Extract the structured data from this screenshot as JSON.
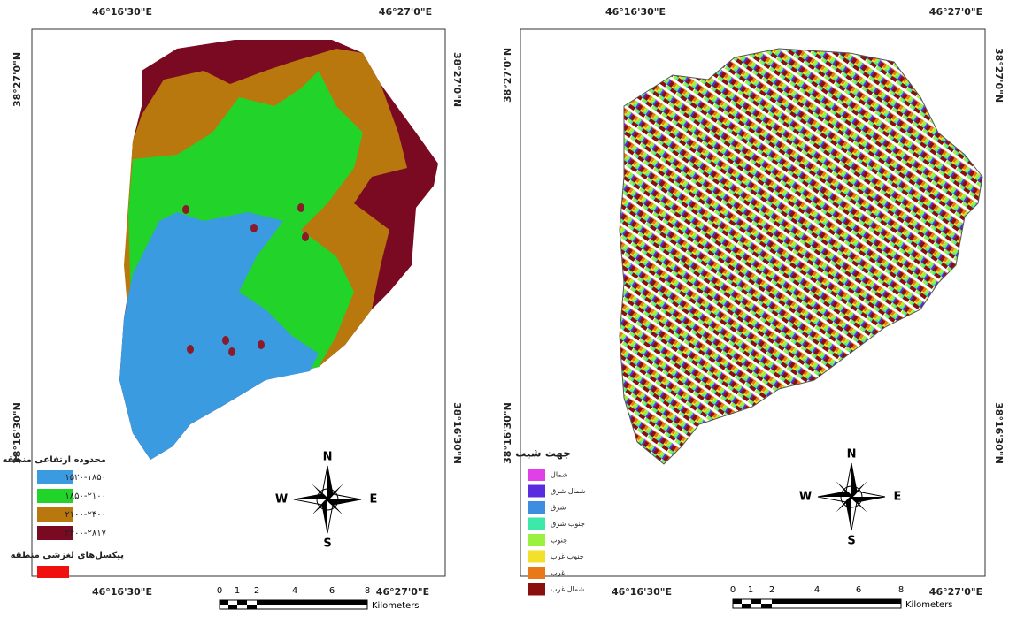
{
  "maps": [
    {
      "top_labels": [
        "46°16'30\"E",
        "46°27'0\"E"
      ],
      "left_labels": [
        "38°27'0\"N",
        "38°16'30\"N"
      ],
      "right_labels": [
        "38°27'0\"N",
        "38°16'30\"N"
      ],
      "bottom_labels": [
        "46°16'30\"E",
        "46°27'0\"E"
      ],
      "legend": {
        "title": "محدوده ارتفاعی منطقه",
        "items": [
          {
            "label": "۱۵۲۰-۱۸۵۰",
            "color": "#3a9be0"
          },
          {
            "label": "۱۸۵۰-۲۱۰۰",
            "color": "#22d42a"
          },
          {
            "label": "۲۱۰۰-۲۴۰۰",
            "color": "#b8780e"
          },
          {
            "label": "۲۴۰۰-۲۸۱۷",
            "color": "#7a0a22"
          }
        ],
        "extra_title": "پیکسل‌های لغزشی منطقه",
        "extra_color": "#f01010"
      },
      "compass": {
        "n": "N",
        "e": "E",
        "s": "S",
        "w": "W"
      },
      "scale": {
        "ticks": [
          "0",
          "1",
          "2",
          "4",
          "6",
          "8"
        ],
        "unit": "Kilometers"
      }
    },
    {
      "top_labels": [
        "46°16'30\"E",
        "46°27'0\"E"
      ],
      "left_labels": [
        "38°27'0\"N",
        "38°16'30\"N"
      ],
      "right_labels": [
        "38°27'0\"N",
        "38°16'30\"N"
      ],
      "bottom_labels": [
        "46°16'30\"E",
        "46°27'0\"E"
      ],
      "legend": {
        "title": "جهت شیب",
        "items": [
          {
            "label": "شمال",
            "color": "#e040e8"
          },
          {
            "label": "شمال شرق",
            "color": "#5a2ce0"
          },
          {
            "label": "شرق",
            "color": "#3d8ee0"
          },
          {
            "label": "جنوب شرق",
            "color": "#3ee8a8"
          },
          {
            "label": "جنوب",
            "color": "#9cf040"
          },
          {
            "label": "جنوب غرب",
            "color": "#f2e02a"
          },
          {
            "label": "غرب",
            "color": "#e87818"
          },
          {
            "label": "شمال غرب",
            "color": "#8a1010"
          }
        ]
      },
      "compass": {
        "n": "N",
        "e": "E",
        "s": "S",
        "w": "W"
      },
      "scale": {
        "ticks": [
          "0",
          "1",
          "2",
          "4",
          "6",
          "8"
        ],
        "unit": "Kilometers"
      }
    }
  ]
}
